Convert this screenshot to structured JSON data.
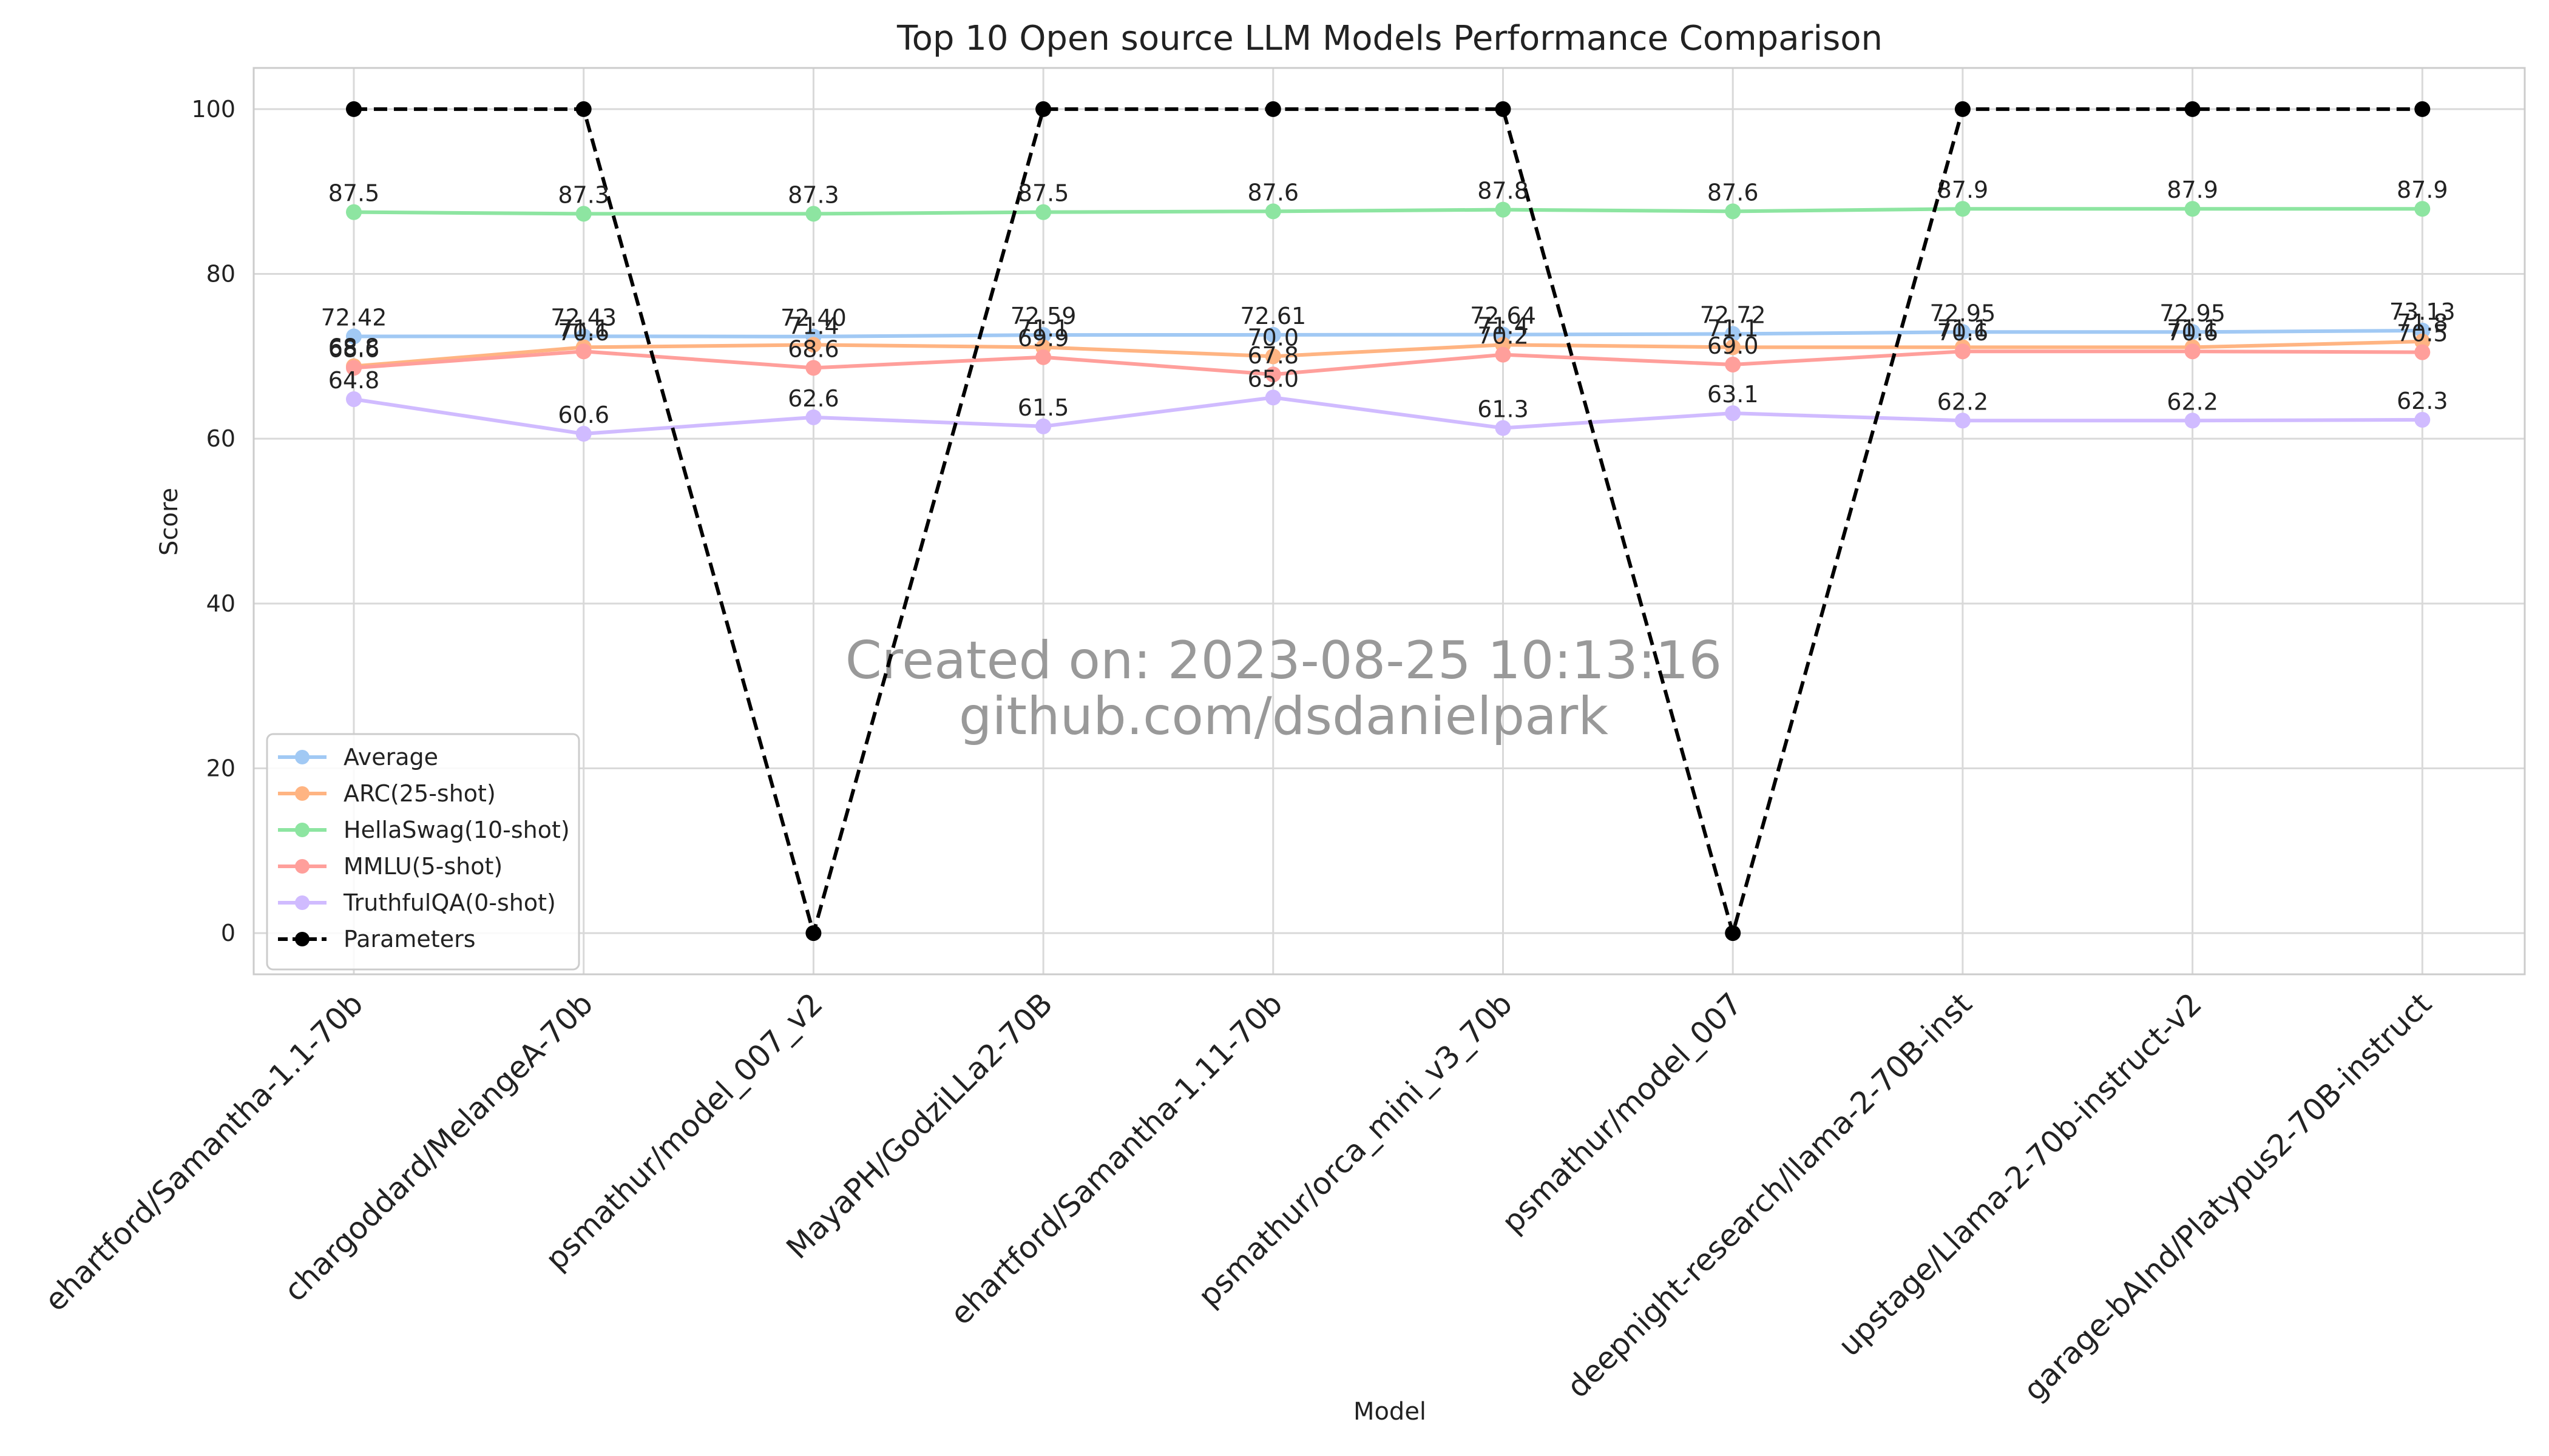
{
  "chart_data": {
    "type": "line",
    "title": "Top 10 Open source LLM Models Performance Comparison",
    "xlabel": "Model",
    "ylabel": "Score",
    "ylim": [
      -5,
      105
    ],
    "yticks": [
      0,
      20,
      40,
      60,
      80,
      100
    ],
    "grid": true,
    "legend_position": "lower-left",
    "categories": [
      "ehartford/Samantha-1.1-70b",
      "chargoddard/MelangeA-70b",
      "psmathur/model_007_v2",
      "MayaPH/GodziLLa2-70B",
      "ehartford/Samantha-1.11-70b",
      "psmathur/orca_mini_v3_70b",
      "psmathur/model_007",
      "deepnight-research/llama-2-70B-inst",
      "upstage/Llama-2-70b-instruct-v2",
      "garage-bAInd/Platypus2-70B-instruct"
    ],
    "series": [
      {
        "name": "Average",
        "color": "#a1c9f4",
        "dashed": false,
        "values": [
          72.42,
          72.43,
          72.4,
          72.59,
          72.61,
          72.64,
          72.72,
          72.95,
          72.95,
          73.13
        ],
        "labels": [
          "72.42",
          "72.43",
          "72.40",
          "72.59",
          "72.61",
          "72.64",
          "72.72",
          "72.95",
          "72.95",
          "73.13"
        ]
      },
      {
        "name": "ARC(25-shot)",
        "color": "#ffb482",
        "dashed": false,
        "values": [
          68.8,
          71.1,
          71.4,
          71.1,
          70.0,
          71.4,
          71.1,
          71.1,
          71.1,
          71.8
        ],
        "labels": [
          "68.8",
          "71.1",
          "71.4",
          "71.1",
          "70.0",
          "71.4",
          "71.1",
          "71.1",
          "71.1",
          "71.8"
        ]
      },
      {
        "name": "HellaSwag(10-shot)",
        "color": "#8de5a1",
        "dashed": false,
        "values": [
          87.5,
          87.3,
          87.3,
          87.5,
          87.6,
          87.8,
          87.6,
          87.9,
          87.9,
          87.9
        ],
        "labels": [
          "87.5",
          "87.3",
          "87.3",
          "87.5",
          "87.6",
          "87.8",
          "87.6",
          "87.9",
          "87.9",
          "87.9"
        ]
      },
      {
        "name": "MMLU(5-shot)",
        "color": "#ff9f9b",
        "dashed": false,
        "values": [
          68.6,
          70.6,
          68.6,
          69.9,
          67.8,
          70.2,
          69.0,
          70.6,
          70.6,
          70.5
        ],
        "labels": [
          "68.6",
          "70.6",
          "68.6",
          "69.9",
          "67.8",
          "70.2",
          "69.0",
          "70.6",
          "70.6",
          "70.5"
        ]
      },
      {
        "name": "TruthfulQA(0-shot)",
        "color": "#d0bbff",
        "dashed": false,
        "values": [
          64.8,
          60.6,
          62.6,
          61.5,
          65.0,
          61.3,
          63.1,
          62.2,
          62.2,
          62.3
        ],
        "labels": [
          "64.8",
          "60.6",
          "62.6",
          "61.5",
          "65.0",
          "61.3",
          "63.1",
          "62.2",
          "62.2",
          "62.3"
        ]
      },
      {
        "name": "Parameters",
        "color": "#000000",
        "dashed": true,
        "values": [
          100,
          100,
          0,
          100,
          100,
          100,
          0,
          100,
          100,
          100
        ],
        "labels": []
      }
    ],
    "watermark": [
      "Created on: 2023-08-25 10:13:16",
      "github.com/dsdanielpark"
    ]
  }
}
